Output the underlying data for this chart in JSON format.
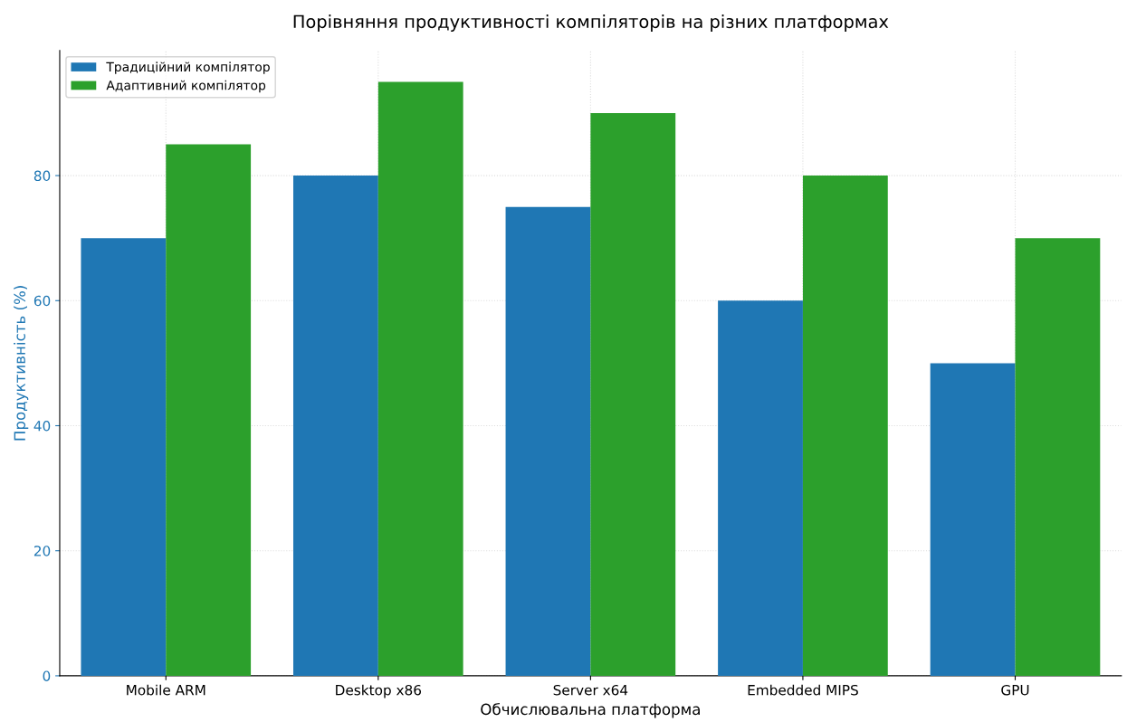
{
  "chart_data": {
    "type": "bar",
    "title": "Порівняння продуктивності компіляторів на різних платформах",
    "xlabel": "Обчислювальна платформа",
    "ylabel": "Продуктивність (%)",
    "categories": [
      "Mobile ARM",
      "Desktop x86",
      "Server x64",
      "Embedded MIPS",
      "GPU"
    ],
    "series": [
      {
        "name": "Традиційний компілятор",
        "color": "#1f77b4",
        "values": [
          70,
          80,
          75,
          60,
          50
        ]
      },
      {
        "name": "Адаптивний компілятор",
        "color": "#2ca02c",
        "values": [
          85,
          95,
          90,
          80,
          70
        ]
      }
    ],
    "ylim": [
      0,
      100
    ],
    "yticks": [
      0,
      20,
      40,
      60,
      80
    ],
    "grid": true,
    "legend": "top left"
  }
}
